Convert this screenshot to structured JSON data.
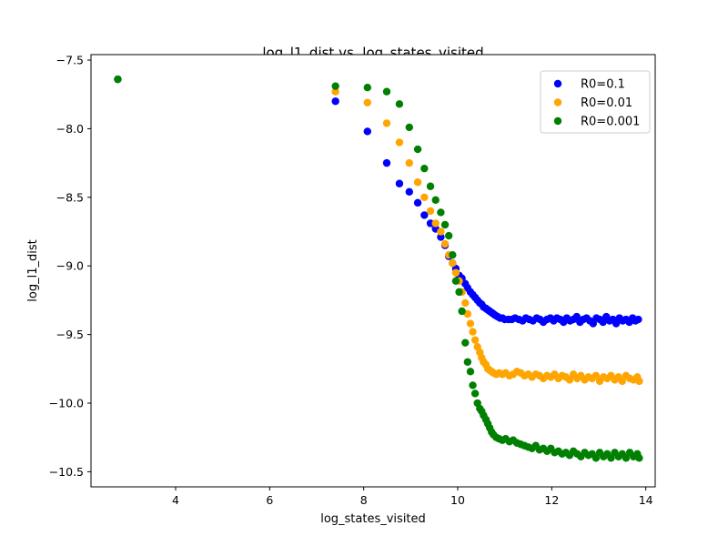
{
  "chart_data": {
    "type": "scatter",
    "title": "log_l1_dist vs. log_states_visited",
    "xlabel": "log_states_visited",
    "ylabel": "log_l1_dist",
    "xlim": [
      2.2,
      14.2
    ],
    "ylim": [
      -10.61,
      -7.46
    ],
    "xticks": [
      4,
      6,
      8,
      10,
      12,
      14
    ],
    "yticks": [
      -7.5,
      -8.0,
      -8.5,
      -9.0,
      -9.5,
      -10.0,
      -10.5
    ],
    "xtick_labels": [
      "4",
      "6",
      "8",
      "10",
      "12",
      "14"
    ],
    "ytick_labels": [
      "−7.5",
      "−8.0",
      "−8.5",
      "−9.0",
      "−9.5",
      "−10.0",
      "−10.5"
    ],
    "grid": false,
    "legend_position": "top-right",
    "series": [
      {
        "name": "R0=0.1",
        "color": "#0000ff",
        "points": [
          [
            2.77,
            -7.64
          ],
          [
            7.4,
            -7.8
          ],
          [
            8.08,
            -8.02
          ],
          [
            8.49,
            -8.25
          ],
          [
            8.76,
            -8.4
          ],
          [
            8.97,
            -8.46
          ],
          [
            9.15,
            -8.54
          ],
          [
            9.29,
            -8.63
          ],
          [
            9.42,
            -8.69
          ],
          [
            9.53,
            -8.73
          ],
          [
            9.64,
            -8.79
          ],
          [
            9.73,
            -8.85
          ],
          [
            9.81,
            -8.93
          ],
          [
            9.89,
            -8.98
          ],
          [
            9.96,
            -9.02
          ],
          [
            10.03,
            -9.07
          ],
          [
            10.09,
            -9.09
          ],
          [
            10.16,
            -9.13
          ],
          [
            10.21,
            -9.16
          ],
          [
            10.27,
            -9.19
          ],
          [
            10.32,
            -9.21
          ],
          [
            10.37,
            -9.23
          ],
          [
            10.42,
            -9.25
          ],
          [
            10.47,
            -9.27
          ],
          [
            10.51,
            -9.28
          ],
          [
            10.55,
            -9.3
          ],
          [
            10.6,
            -9.31
          ],
          [
            10.64,
            -9.32
          ],
          [
            10.68,
            -9.33
          ],
          [
            10.72,
            -9.34
          ],
          [
            10.76,
            -9.35
          ],
          [
            10.8,
            -9.36
          ],
          [
            10.85,
            -9.37
          ],
          [
            10.9,
            -9.38
          ],
          [
            10.95,
            -9.38
          ],
          [
            11.0,
            -9.39
          ],
          [
            11.08,
            -9.39
          ],
          [
            11.15,
            -9.39
          ],
          [
            11.22,
            -9.38
          ],
          [
            11.3,
            -9.39
          ],
          [
            11.38,
            -9.4
          ],
          [
            11.45,
            -9.38
          ],
          [
            11.52,
            -9.39
          ],
          [
            11.6,
            -9.4
          ],
          [
            11.68,
            -9.38
          ],
          [
            11.75,
            -9.39
          ],
          [
            11.82,
            -9.41
          ],
          [
            11.9,
            -9.39
          ],
          [
            11.97,
            -9.38
          ],
          [
            12.04,
            -9.4
          ],
          [
            12.11,
            -9.38
          ],
          [
            12.18,
            -9.39
          ],
          [
            12.25,
            -9.41
          ],
          [
            12.32,
            -9.38
          ],
          [
            12.39,
            -9.4
          ],
          [
            12.46,
            -9.39
          ],
          [
            12.53,
            -9.37
          ],
          [
            12.6,
            -9.41
          ],
          [
            12.67,
            -9.39
          ],
          [
            12.74,
            -9.38
          ],
          [
            12.81,
            -9.4
          ],
          [
            12.88,
            -9.42
          ],
          [
            12.95,
            -9.38
          ],
          [
            13.02,
            -9.39
          ],
          [
            13.09,
            -9.41
          ],
          [
            13.16,
            -9.37
          ],
          [
            13.23,
            -9.4
          ],
          [
            13.3,
            -9.39
          ],
          [
            13.37,
            -9.42
          ],
          [
            13.44,
            -9.38
          ],
          [
            13.51,
            -9.4
          ],
          [
            13.58,
            -9.39
          ],
          [
            13.65,
            -9.41
          ],
          [
            13.72,
            -9.38
          ],
          [
            13.78,
            -9.4
          ],
          [
            13.84,
            -9.39
          ]
        ]
      },
      {
        "name": "R0=0.01",
        "color": "#ffa500",
        "points": [
          [
            7.4,
            -7.73
          ],
          [
            8.08,
            -7.81
          ],
          [
            8.49,
            -7.96
          ],
          [
            8.76,
            -8.1
          ],
          [
            8.97,
            -8.25
          ],
          [
            9.15,
            -8.39
          ],
          [
            9.29,
            -8.5
          ],
          [
            9.42,
            -8.6
          ],
          [
            9.53,
            -8.69
          ],
          [
            9.64,
            -8.75
          ],
          [
            9.73,
            -8.84
          ],
          [
            9.81,
            -8.92
          ],
          [
            9.89,
            -8.98
          ],
          [
            9.96,
            -9.05
          ],
          [
            10.03,
            -9.11
          ],
          [
            10.09,
            -9.19
          ],
          [
            10.16,
            -9.27
          ],
          [
            10.21,
            -9.35
          ],
          [
            10.27,
            -9.42
          ],
          [
            10.32,
            -9.48
          ],
          [
            10.37,
            -9.54
          ],
          [
            10.42,
            -9.59
          ],
          [
            10.47,
            -9.63
          ],
          [
            10.51,
            -9.67
          ],
          [
            10.55,
            -9.7
          ],
          [
            10.6,
            -9.72
          ],
          [
            10.64,
            -9.75
          ],
          [
            10.68,
            -9.76
          ],
          [
            10.72,
            -9.77
          ],
          [
            10.76,
            -9.78
          ],
          [
            10.82,
            -9.79
          ],
          [
            10.88,
            -9.78
          ],
          [
            10.95,
            -9.79
          ],
          [
            11.02,
            -9.78
          ],
          [
            11.1,
            -9.8
          ],
          [
            11.18,
            -9.79
          ],
          [
            11.26,
            -9.77
          ],
          [
            11.34,
            -9.78
          ],
          [
            11.42,
            -9.8
          ],
          [
            11.5,
            -9.79
          ],
          [
            11.58,
            -9.81
          ],
          [
            11.66,
            -9.79
          ],
          [
            11.74,
            -9.8
          ],
          [
            11.82,
            -9.82
          ],
          [
            11.9,
            -9.8
          ],
          [
            11.98,
            -9.81
          ],
          [
            12.06,
            -9.79
          ],
          [
            12.14,
            -9.82
          ],
          [
            12.22,
            -9.8
          ],
          [
            12.3,
            -9.81
          ],
          [
            12.38,
            -9.83
          ],
          [
            12.46,
            -9.79
          ],
          [
            12.54,
            -9.82
          ],
          [
            12.62,
            -9.8
          ],
          [
            12.7,
            -9.83
          ],
          [
            12.78,
            -9.81
          ],
          [
            12.86,
            -9.82
          ],
          [
            12.94,
            -9.8
          ],
          [
            13.02,
            -9.84
          ],
          [
            13.1,
            -9.81
          ],
          [
            13.18,
            -9.82
          ],
          [
            13.26,
            -9.8
          ],
          [
            13.34,
            -9.83
          ],
          [
            13.42,
            -9.81
          ],
          [
            13.5,
            -9.84
          ],
          [
            13.58,
            -9.8
          ],
          [
            13.66,
            -9.82
          ],
          [
            13.74,
            -9.83
          ],
          [
            13.82,
            -9.81
          ],
          [
            13.86,
            -9.84
          ]
        ]
      },
      {
        "name": "R0=0.001",
        "color": "#008000",
        "points": [
          [
            2.77,
            -7.64
          ],
          [
            7.4,
            -7.69
          ],
          [
            8.08,
            -7.7
          ],
          [
            8.49,
            -7.73
          ],
          [
            8.76,
            -7.82
          ],
          [
            8.97,
            -7.99
          ],
          [
            9.15,
            -8.15
          ],
          [
            9.29,
            -8.29
          ],
          [
            9.42,
            -8.42
          ],
          [
            9.53,
            -8.52
          ],
          [
            9.64,
            -8.61
          ],
          [
            9.73,
            -8.7
          ],
          [
            9.81,
            -8.78
          ],
          [
            9.89,
            -8.92
          ],
          [
            9.96,
            -9.11
          ],
          [
            10.03,
            -9.19
          ],
          [
            10.09,
            -9.33
          ],
          [
            10.16,
            -9.56
          ],
          [
            10.21,
            -9.7
          ],
          [
            10.27,
            -9.77
          ],
          [
            10.32,
            -9.87
          ],
          [
            10.37,
            -9.93
          ],
          [
            10.42,
            -10.0
          ],
          [
            10.47,
            -10.04
          ],
          [
            10.51,
            -10.06
          ],
          [
            10.55,
            -10.09
          ],
          [
            10.6,
            -10.12
          ],
          [
            10.64,
            -10.15
          ],
          [
            10.68,
            -10.18
          ],
          [
            10.72,
            -10.21
          ],
          [
            10.76,
            -10.23
          ],
          [
            10.82,
            -10.25
          ],
          [
            10.88,
            -10.26
          ],
          [
            10.95,
            -10.27
          ],
          [
            11.02,
            -10.26
          ],
          [
            11.1,
            -10.28
          ],
          [
            11.18,
            -10.27
          ],
          [
            11.26,
            -10.29
          ],
          [
            11.34,
            -10.3
          ],
          [
            11.42,
            -10.31
          ],
          [
            11.5,
            -10.32
          ],
          [
            11.58,
            -10.33
          ],
          [
            11.66,
            -10.31
          ],
          [
            11.74,
            -10.34
          ],
          [
            11.82,
            -10.33
          ],
          [
            11.9,
            -10.35
          ],
          [
            11.98,
            -10.33
          ],
          [
            12.06,
            -10.36
          ],
          [
            12.14,
            -10.35
          ],
          [
            12.22,
            -10.37
          ],
          [
            12.3,
            -10.36
          ],
          [
            12.38,
            -10.38
          ],
          [
            12.46,
            -10.35
          ],
          [
            12.54,
            -10.37
          ],
          [
            12.62,
            -10.39
          ],
          [
            12.7,
            -10.36
          ],
          [
            12.78,
            -10.38
          ],
          [
            12.86,
            -10.37
          ],
          [
            12.94,
            -10.4
          ],
          [
            13.02,
            -10.36
          ],
          [
            13.1,
            -10.39
          ],
          [
            13.18,
            -10.37
          ],
          [
            13.26,
            -10.4
          ],
          [
            13.34,
            -10.36
          ],
          [
            13.42,
            -10.39
          ],
          [
            13.5,
            -10.37
          ],
          [
            13.58,
            -10.4
          ],
          [
            13.66,
            -10.36
          ],
          [
            13.74,
            -10.39
          ],
          [
            13.82,
            -10.37
          ],
          [
            13.86,
            -10.4
          ]
        ]
      }
    ]
  }
}
